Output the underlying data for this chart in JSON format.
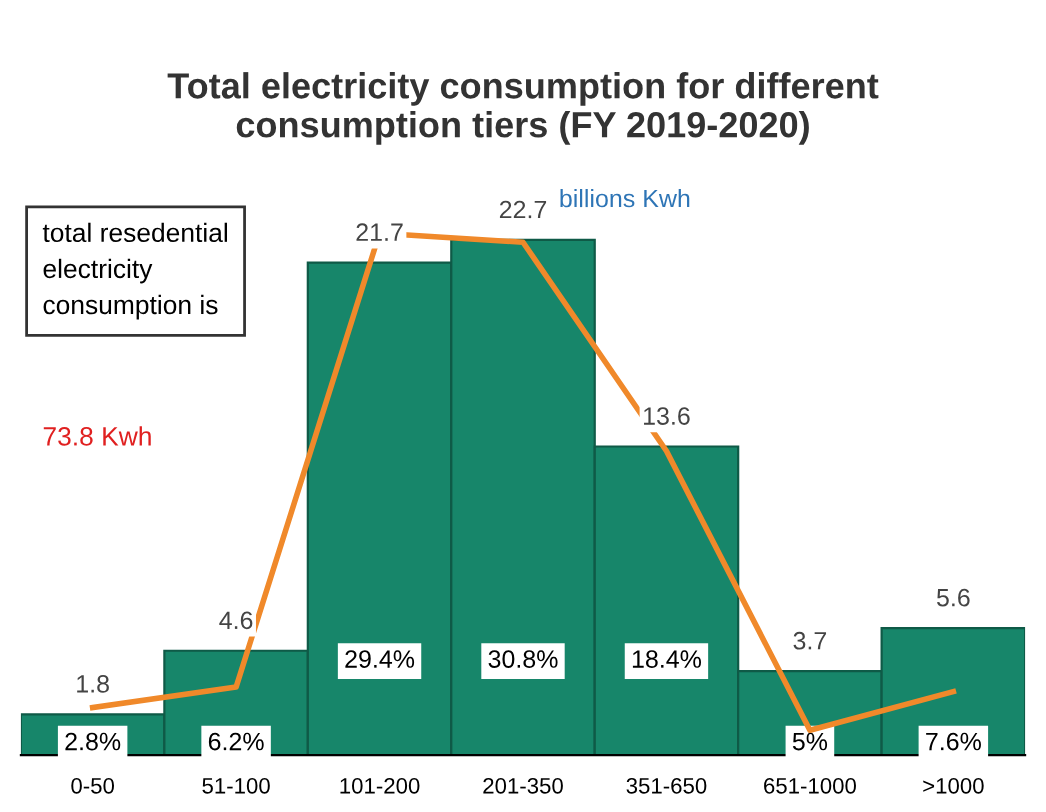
{
  "chart_data": {
    "type": "bar",
    "title": "Total electricity consumption for different\nconsumption tiers (FY 2019-2020)",
    "categories": [
      "0-50",
      "51-100",
      "101-200",
      "201-350",
      "351-650",
      "651-1000",
      ">1000"
    ],
    "series": [
      {
        "color": "#17866a",
        "values": [
          1.8,
          4.6,
          21.7,
          22.7,
          13.6,
          3.7,
          5.6
        ],
        "data_labels": true
      },
      {
        "type": "line",
        "color": "#f0892a",
        "values": [
          2.1,
          3.0,
          23.0,
          22.6,
          13.4,
          1.1,
          2.8
        ]
      }
    ],
    "annotations": [
      "2.8%",
      "6.2%",
      "29.4%",
      "30.8%",
      "18.4%",
      "5%",
      "7.6%",
      "billions Kwh",
      "total resedential\nelectricity\nconsumption is",
      "73.8 Kwh"
    ],
    "grid": false,
    "legend": false
  }
}
